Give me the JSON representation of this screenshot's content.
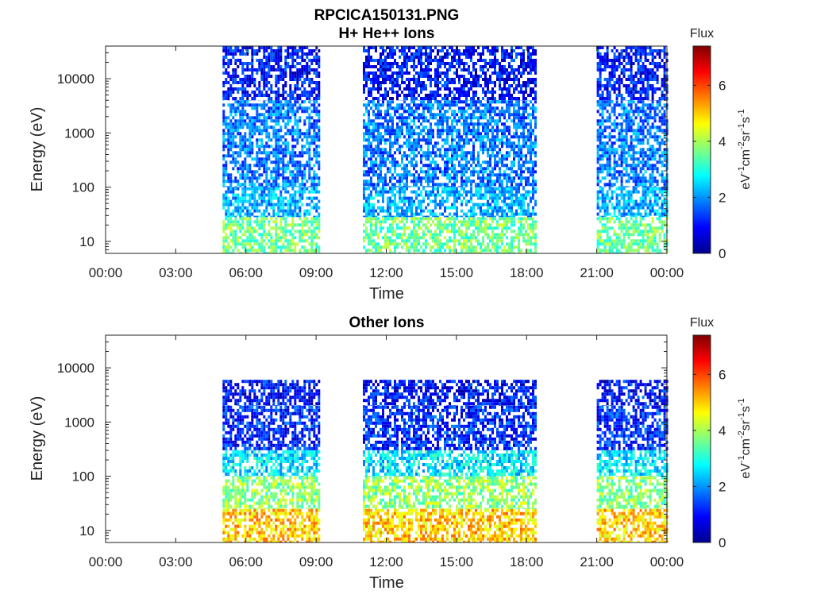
{
  "figure_title": "RPCICA150131.PNG",
  "colorbar": {
    "label": "Flux",
    "unit_parts": [
      "eV",
      "-1",
      "cm",
      "-2",
      "sr",
      "-1",
      "s",
      "-1"
    ],
    "range": [
      0,
      7.4
    ],
    "ticks": [
      "0",
      "2",
      "4",
      "6"
    ],
    "colormap": "jet"
  },
  "chart_data": [
    {
      "type": "heatmap",
      "title": "H+ He++ Ions",
      "xlabel": "Time",
      "ylabel": "Energy (eV)",
      "y_scale": "log",
      "ylim": [
        6,
        40000
      ],
      "yticks": [
        "10",
        "100",
        "1000",
        "10000"
      ],
      "xlim": [
        "00:00",
        "24:00"
      ],
      "xticks": [
        "00:00",
        "03:00",
        "06:00",
        "09:00",
        "12:00",
        "15:00",
        "18:00",
        "21:00",
        "00:00"
      ],
      "data_intervals": [
        [
          "05:00",
          "09:05"
        ],
        [
          "11:00",
          "18:20"
        ],
        [
          "21:00",
          "24:00"
        ]
      ],
      "bands": [
        {
          "e_lo": 6,
          "e_hi": 28,
          "flux": 3.6
        },
        {
          "e_lo": 28,
          "e_hi": 100,
          "flux": 2.2
        },
        {
          "e_lo": 100,
          "e_hi": 4000,
          "flux": 1.8
        },
        {
          "e_lo": 4000,
          "e_hi": 40000,
          "flux": 1.0
        }
      ]
    },
    {
      "type": "heatmap",
      "title": "Other Ions",
      "xlabel": "Time",
      "ylabel": "Energy (eV)",
      "y_scale": "log",
      "ylim": [
        6,
        40000
      ],
      "yticks": [
        "10",
        "100",
        "1000",
        "10000"
      ],
      "xlim": [
        "00:00",
        "24:00"
      ],
      "xticks": [
        "00:00",
        "03:00",
        "06:00",
        "09:00",
        "12:00",
        "15:00",
        "18:00",
        "21:00",
        "00:00"
      ],
      "data_intervals": [
        [
          "05:00",
          "09:05"
        ],
        [
          "11:00",
          "18:20"
        ],
        [
          "21:00",
          "24:00"
        ]
      ],
      "bands": [
        {
          "e_lo": 6,
          "e_hi": 25,
          "flux": 5.0
        },
        {
          "e_lo": 25,
          "e_hi": 100,
          "flux": 3.8
        },
        {
          "e_lo": 100,
          "e_hi": 300,
          "flux": 2.6
        },
        {
          "e_lo": 300,
          "e_hi": 2000,
          "flux": 1.2
        },
        {
          "e_lo": 2000,
          "e_hi": 6000,
          "flux": 1.0
        }
      ]
    }
  ]
}
